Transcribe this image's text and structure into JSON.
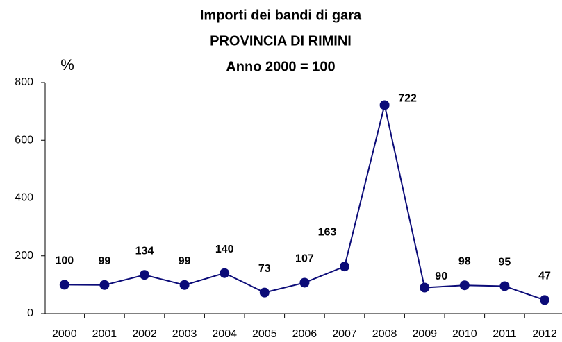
{
  "chart_data": {
    "type": "line",
    "title": [
      "Importi dei bandi di gara",
      "PROVINCIA DI RIMINI",
      "Anno 2000 = 100"
    ],
    "y_label": "%",
    "categories": [
      "2000",
      "2001",
      "2002",
      "2003",
      "2004",
      "2005",
      "2006",
      "2007",
      "2008",
      "2009",
      "2010",
      "2011",
      "2012"
    ],
    "series": [
      {
        "name": "Importi",
        "color": "#0b0b78",
        "values": [
          100,
          99,
          134,
          99,
          140,
          73,
          107,
          163,
          722,
          90,
          98,
          95,
          47
        ]
      }
    ],
    "ylim": [
      0,
      800
    ],
    "yticks": [
      0,
      200,
      400,
      600,
      800
    ],
    "grid": false
  }
}
